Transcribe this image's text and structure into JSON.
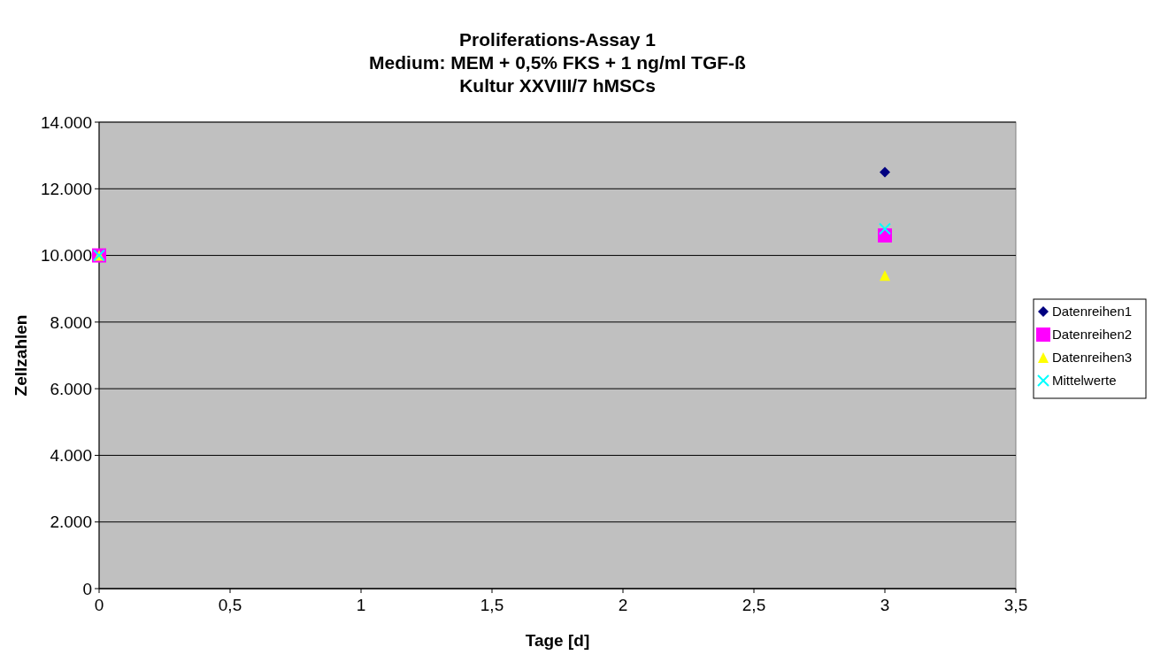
{
  "chart_data": {
    "type": "scatter",
    "title": "Proliferations-Assay 1\nMedium: MEM + 0,5% FKS + 1 ng/ml TGF-ß\nKultur XXVIII/7 hMSCs",
    "xlabel": "Tage [d]",
    "ylabel": "Zellzahlen",
    "x": [
      0,
      3
    ],
    "series": [
      {
        "name": "Datenreihen1",
        "color": "#000080",
        "marker": "diamond",
        "values": [
          null,
          12500
        ]
      },
      {
        "name": "Datenreihen2",
        "color": "#ff00ff",
        "marker": "square",
        "values": [
          10000,
          10600
        ]
      },
      {
        "name": "Datenreihen3",
        "color": "#ffff00",
        "marker": "triangle",
        "values": [
          10000,
          9400
        ]
      },
      {
        "name": "Mittelwerte",
        "color": "#00ffff",
        "marker": "cross",
        "values": [
          10000,
          10800
        ]
      }
    ],
    "xlim": [
      0,
      3.5
    ],
    "xticks": [
      0,
      {
        "value": 0.5,
        "label": "0,5"
      },
      1,
      {
        "value": 1.5,
        "label": "1,5"
      },
      2,
      {
        "value": 2.5,
        "label": "2,5"
      },
      3,
      {
        "value": 3.5,
        "label": "3,5"
      }
    ],
    "ylim": [
      0,
      14000
    ],
    "yticks": [
      0,
      {
        "value": 2000,
        "label": "2.000"
      },
      {
        "value": 4000,
        "label": "4.000"
      },
      {
        "value": 6000,
        "label": "6.000"
      },
      {
        "value": 8000,
        "label": "8.000"
      },
      {
        "value": 10000,
        "label": "10.000"
      },
      {
        "value": 12000,
        "label": "12.000"
      },
      {
        "value": 14000,
        "label": "14.000"
      }
    ],
    "grid": "y",
    "legend": "right"
  }
}
